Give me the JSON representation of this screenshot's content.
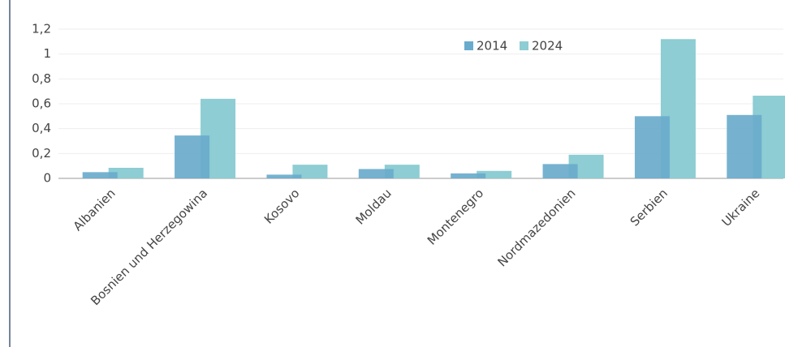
{
  "chart_data": {
    "type": "bar",
    "categories": [
      "Albanien",
      "Bosnien und Herzegowina",
      "Kosovo",
      "Moldau",
      "Montenegro",
      "Nordmazedonien",
      "Serbien",
      "Ukraine"
    ],
    "series": [
      {
        "name": "2014",
        "color": "#6aabcc",
        "values": [
          0.05,
          0.345,
          0.03,
          0.075,
          0.04,
          0.115,
          0.5,
          0.51
        ]
      },
      {
        "name": "2024",
        "color": "#8dcdd3",
        "values": [
          0.085,
          0.64,
          0.11,
          0.11,
          0.06,
          0.19,
          1.12,
          0.665
        ]
      }
    ],
    "ylim": [
      0,
      1.2
    ],
    "yticks": [
      0,
      {
        "value": 0.2,
        "label": "0,2"
      },
      {
        "value": 0.4,
        "label": "0,4"
      },
      {
        "value": 0.6,
        "label": "0,6"
      },
      {
        "value": 0.8,
        "label": "0,8"
      },
      1,
      {
        "value": 1.2,
        "label": "1,2"
      }
    ],
    "grid": true,
    "legend": "top-right"
  }
}
